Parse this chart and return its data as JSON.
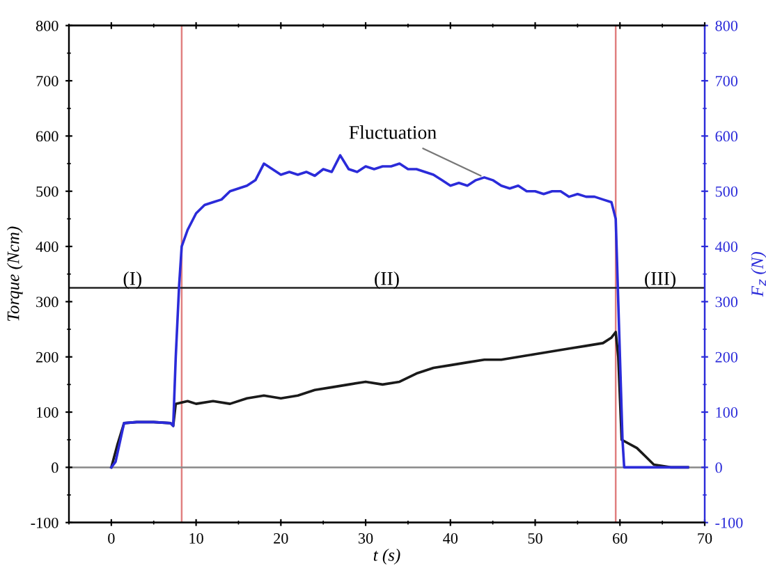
{
  "chart_data": {
    "type": "line",
    "xlabel": "t (s)",
    "ylabel": "Torque (Ncm)",
    "y2label": "F$_{z}$ (N)",
    "xlim": [
      -5,
      70
    ],
    "xticks": [
      0,
      10,
      20,
      30,
      40,
      50,
      60,
      70
    ],
    "ylim": [
      -100,
      800
    ],
    "yticks": [
      -100,
      0,
      100,
      200,
      300,
      400,
      500,
      600,
      700,
      800
    ],
    "y2lim": [
      -100,
      800
    ],
    "y2ticks": [
      -100,
      0,
      100,
      200,
      300,
      400,
      500,
      600,
      700,
      800
    ],
    "grid": false,
    "marker": "none",
    "line_style": "solid",
    "series": [
      {
        "color": "#1a1a1a",
        "x": [
          0,
          0.7,
          1.5,
          3,
          5,
          7,
          7.3,
          7.6,
          9,
          10,
          12,
          14,
          16,
          18,
          20,
          22,
          24,
          26,
          28,
          30,
          32,
          34,
          36,
          38,
          40,
          42,
          44,
          46,
          48,
          50,
          52,
          54,
          56,
          58,
          59,
          59.5,
          59.8,
          60.2,
          62,
          63,
          64,
          66,
          68
        ],
        "values": [
          0,
          40,
          80,
          82,
          82,
          80,
          75,
          115,
          120,
          115,
          120,
          115,
          125,
          130,
          125,
          130,
          140,
          145,
          150,
          155,
          150,
          155,
          170,
          180,
          185,
          190,
          195,
          195,
          200,
          205,
          210,
          215,
          220,
          225,
          235,
          245,
          200,
          50,
          35,
          20,
          5,
          0,
          0
        ]
      },
      {
        "color": "#2b2bd9",
        "axis": "y2",
        "x": [
          0,
          0.5,
          1.5,
          3,
          5,
          7,
          7.3,
          7.6,
          8,
          8.3,
          9,
          10,
          11,
          12,
          13,
          14,
          15,
          16,
          17,
          18,
          19,
          20,
          21,
          22,
          23,
          24,
          25,
          26,
          27,
          28,
          29,
          30,
          31,
          32,
          33,
          34,
          35,
          36,
          37,
          38,
          39,
          40,
          41,
          42,
          43,
          44,
          45,
          46,
          47,
          48,
          49,
          50,
          51,
          52,
          53,
          54,
          55,
          56,
          57,
          58,
          59,
          59.5,
          60,
          60.3,
          60.5,
          68
        ],
        "values": [
          0,
          10,
          80,
          82,
          82,
          80,
          75,
          200,
          330,
          400,
          430,
          460,
          475,
          480,
          485,
          500,
          505,
          510,
          520,
          550,
          540,
          530,
          535,
          530,
          535,
          528,
          540,
          535,
          565,
          540,
          535,
          545,
          540,
          545,
          545,
          550,
          540,
          540,
          535,
          530,
          520,
          510,
          515,
          510,
          520,
          525,
          520,
          510,
          505,
          510,
          500,
          500,
          495,
          500,
          500,
          490,
          495,
          490,
          490,
          485,
          480,
          450,
          200,
          50,
          0,
          0
        ]
      }
    ],
    "ref_lines": [
      {
        "axis": "x",
        "value": 8.3,
        "color": "#e08080"
      },
      {
        "axis": "x",
        "value": 59.5,
        "color": "#e08080"
      },
      {
        "axis": "y",
        "value": 325,
        "color": "#222222"
      },
      {
        "axis": "y",
        "value": 0,
        "color": "#888888"
      }
    ],
    "annotations": [
      "(I)",
      "(II)",
      "(III)",
      {
        "text": "Fluctuation",
        "x": 44,
        "y": 525
      }
    ]
  }
}
